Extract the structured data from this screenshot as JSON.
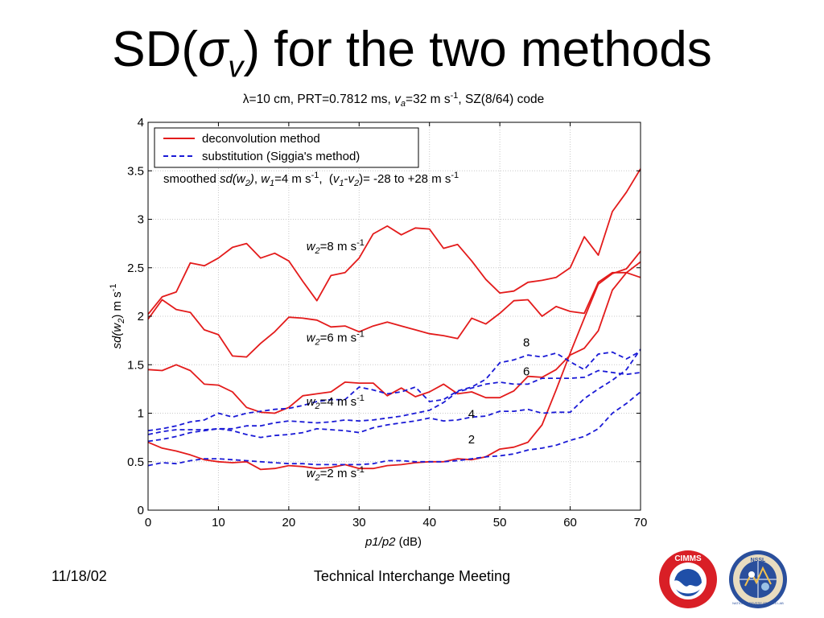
{
  "slide": {
    "title_prefix": "SD(",
    "title_sigma": "σ",
    "title_sub": "v",
    "title_suffix": ") for the two methods",
    "footer_date": "11/18/02",
    "footer_text": "Technical Interchange Meeting"
  },
  "logos": {
    "cimms_text": "CIMMS",
    "nssl_text": "NSSL",
    "nssl_ring_text": "NATIONAL SEVERE STORMS LAB"
  },
  "chart_data": {
    "type": "line",
    "title_parts": {
      "lambda": "λ",
      "rest1": "=10 cm, PRT=0.7812 ms, ",
      "va_v": "v",
      "va_sub": "a",
      "rest2": "=32 m s",
      "sup": "-1",
      "rest3": ", SZ(8/64) code"
    },
    "xlabel_italic": "p1/p2",
    "xlabel_rest": " (dB)",
    "ylabel_parts": {
      "a": "sd(w",
      "sub": "2",
      "b": ") m s",
      "sup": "-1"
    },
    "xlim": [
      0,
      70
    ],
    "ylim": [
      0,
      4
    ],
    "xticks": [
      "0",
      "10",
      "20",
      "30",
      "40",
      "50",
      "60",
      "70"
    ],
    "yticks": [
      "0",
      "0.5",
      "1",
      "1.5",
      "2",
      "2.5",
      "3",
      "3.5",
      "4"
    ],
    "grid": true,
    "legend": {
      "position": "top-left",
      "entries": [
        {
          "label": "deconvolution method",
          "color": "#e31b1b",
          "dash": "solid"
        },
        {
          "label": "substitution (Siggia's method)",
          "color": "#1a1ad6",
          "dash": "dashed"
        }
      ]
    },
    "note_parts": {
      "a": "smoothed ",
      "b": "sd(w",
      "c": "2",
      "d": ")",
      "e": ", ",
      "f": "w",
      "g": "1",
      "h": "=4 m s",
      "i": "-1",
      "j": ",  (",
      "k": "v",
      "l": "1",
      "m": "-",
      "n": "v",
      "o": "2",
      "p": ")",
      "q": "= -28 to +28 m s",
      "r": "-1"
    },
    "annotations": [
      {
        "id": "w2-8",
        "w": "w",
        "sub": "2",
        "text": "=8 m s",
        "sup": "-1",
        "x": 22.5,
        "y": 2.68
      },
      {
        "id": "w2-6",
        "w": "w",
        "sub": "2",
        "text": "=6 m s",
        "sup": "-1",
        "x": 22.5,
        "y": 1.74
      },
      {
        "id": "w2-4",
        "w": "w",
        "sub": "2",
        "text": "=4 m s",
        "sup": "-1",
        "x": 22.5,
        "y": 1.08
      },
      {
        "id": "w2-2",
        "w": "w",
        "sub": "2",
        "text": "=2 m s",
        "sup": "-1",
        "x": 22.5,
        "y": 0.34
      }
    ],
    "curve_labels": [
      {
        "text": "8",
        "x": 53.3,
        "y": 1.69
      },
      {
        "text": "6",
        "x": 53.3,
        "y": 1.39
      },
      {
        "text": "4",
        "x": 45.5,
        "y": 0.95
      },
      {
        "text": "2",
        "x": 45.5,
        "y": 0.69
      }
    ],
    "x": [
      0,
      2,
      4,
      6,
      8,
      10,
      12,
      14,
      16,
      18,
      20,
      22,
      24,
      26,
      28,
      30,
      32,
      34,
      36,
      38,
      40,
      42,
      44,
      46,
      48,
      50,
      52,
      54,
      56,
      58,
      60,
      62,
      64,
      66,
      68,
      70
    ],
    "series": [
      {
        "method": "deconvolution",
        "w2": 8,
        "color": "#e31b1b",
        "dash": "solid",
        "values": [
          2.02,
          2.2,
          2.25,
          2.55,
          2.52,
          2.6,
          2.71,
          2.75,
          2.6,
          2.65,
          2.57,
          2.36,
          2.16,
          2.42,
          2.45,
          2.6,
          2.85,
          2.93,
          2.84,
          2.91,
          2.9,
          2.7,
          2.74,
          2.57,
          2.38,
          2.24,
          2.26,
          2.35,
          2.37,
          2.4,
          2.5,
          2.82,
          2.63,
          3.08,
          3.28,
          3.52
        ]
      },
      {
        "method": "deconvolution",
        "w2": 6,
        "color": "#e31b1b",
        "dash": "solid",
        "values": [
          1.97,
          2.17,
          2.07,
          2.04,
          1.86,
          1.81,
          1.59,
          1.58,
          1.72,
          1.84,
          1.99,
          1.98,
          1.96,
          1.89,
          1.9,
          1.84,
          1.9,
          1.94,
          1.9,
          1.86,
          1.82,
          1.8,
          1.77,
          1.98,
          1.92,
          2.03,
          2.16,
          2.17,
          2.0,
          2.1,
          2.05,
          2.03,
          2.35,
          2.45,
          2.45,
          2.4
        ]
      },
      {
        "method": "deconvolution",
        "w2": 4,
        "color": "#e31b1b",
        "dash": "solid",
        "values": [
          1.45,
          1.44,
          1.5,
          1.44,
          1.3,
          1.29,
          1.22,
          1.06,
          1.01,
          1.0,
          1.06,
          1.18,
          1.2,
          1.22,
          1.32,
          1.31,
          1.31,
          1.18,
          1.26,
          1.17,
          1.22,
          1.3,
          1.2,
          1.22,
          1.16,
          1.16,
          1.23,
          1.38,
          1.37,
          1.45,
          1.6,
          1.67,
          1.85,
          2.27,
          2.45,
          2.56
        ]
      },
      {
        "method": "deconvolution",
        "w2": 2,
        "color": "#e31b1b",
        "dash": "solid",
        "values": [
          0.7,
          0.64,
          0.61,
          0.57,
          0.52,
          0.5,
          0.49,
          0.5,
          0.42,
          0.43,
          0.46,
          0.45,
          0.43,
          0.44,
          0.47,
          0.43,
          0.43,
          0.46,
          0.47,
          0.49,
          0.5,
          0.5,
          0.53,
          0.52,
          0.55,
          0.63,
          0.65,
          0.7,
          0.88,
          1.24,
          1.62,
          1.98,
          2.33,
          2.44,
          2.49,
          2.67
        ]
      },
      {
        "method": "substitution",
        "w2": 8,
        "color": "#1a1ad6",
        "dash": "dashed",
        "values": [
          0.82,
          0.84,
          0.87,
          0.91,
          0.93,
          1.0,
          0.96,
          1.0,
          1.02,
          1.04,
          1.05,
          1.08,
          1.12,
          1.14,
          1.14,
          1.27,
          1.24,
          1.2,
          1.22,
          1.27,
          1.12,
          1.14,
          1.23,
          1.27,
          1.35,
          1.52,
          1.55,
          1.6,
          1.58,
          1.62,
          1.53,
          1.45,
          1.61,
          1.63,
          1.56,
          1.64
        ]
      },
      {
        "method": "substitution",
        "w2": 6,
        "color": "#1a1ad6",
        "dash": "dashed",
        "values": [
          0.78,
          0.81,
          0.83,
          0.83,
          0.83,
          0.84,
          0.84,
          0.87,
          0.87,
          0.9,
          0.92,
          0.91,
          0.9,
          0.91,
          0.93,
          0.92,
          0.93,
          0.95,
          0.97,
          1.0,
          1.03,
          1.11,
          1.22,
          1.26,
          1.3,
          1.32,
          1.3,
          1.3,
          1.36,
          1.36,
          1.36,
          1.37,
          1.44,
          1.42,
          1.4,
          1.42
        ]
      },
      {
        "method": "substitution",
        "w2": 4,
        "color": "#1a1ad6",
        "dash": "dashed",
        "values": [
          0.71,
          0.73,
          0.76,
          0.8,
          0.82,
          0.84,
          0.82,
          0.78,
          0.75,
          0.77,
          0.78,
          0.8,
          0.84,
          0.83,
          0.82,
          0.8,
          0.85,
          0.88,
          0.9,
          0.92,
          0.95,
          0.92,
          0.93,
          0.96,
          0.97,
          1.02,
          1.02,
          1.04,
          1.0,
          1.01,
          1.01,
          1.15,
          1.25,
          1.34,
          1.45,
          1.66
        ]
      },
      {
        "method": "substitution",
        "w2": 2,
        "color": "#1a1ad6",
        "dash": "dashed",
        "values": [
          0.46,
          0.49,
          0.48,
          0.51,
          0.53,
          0.53,
          0.52,
          0.51,
          0.5,
          0.49,
          0.48,
          0.48,
          0.47,
          0.47,
          0.47,
          0.47,
          0.48,
          0.51,
          0.51,
          0.5,
          0.5,
          0.5,
          0.51,
          0.53,
          0.55,
          0.56,
          0.58,
          0.62,
          0.64,
          0.67,
          0.72,
          0.76,
          0.84,
          1.0,
          1.1,
          1.22
        ]
      }
    ]
  }
}
